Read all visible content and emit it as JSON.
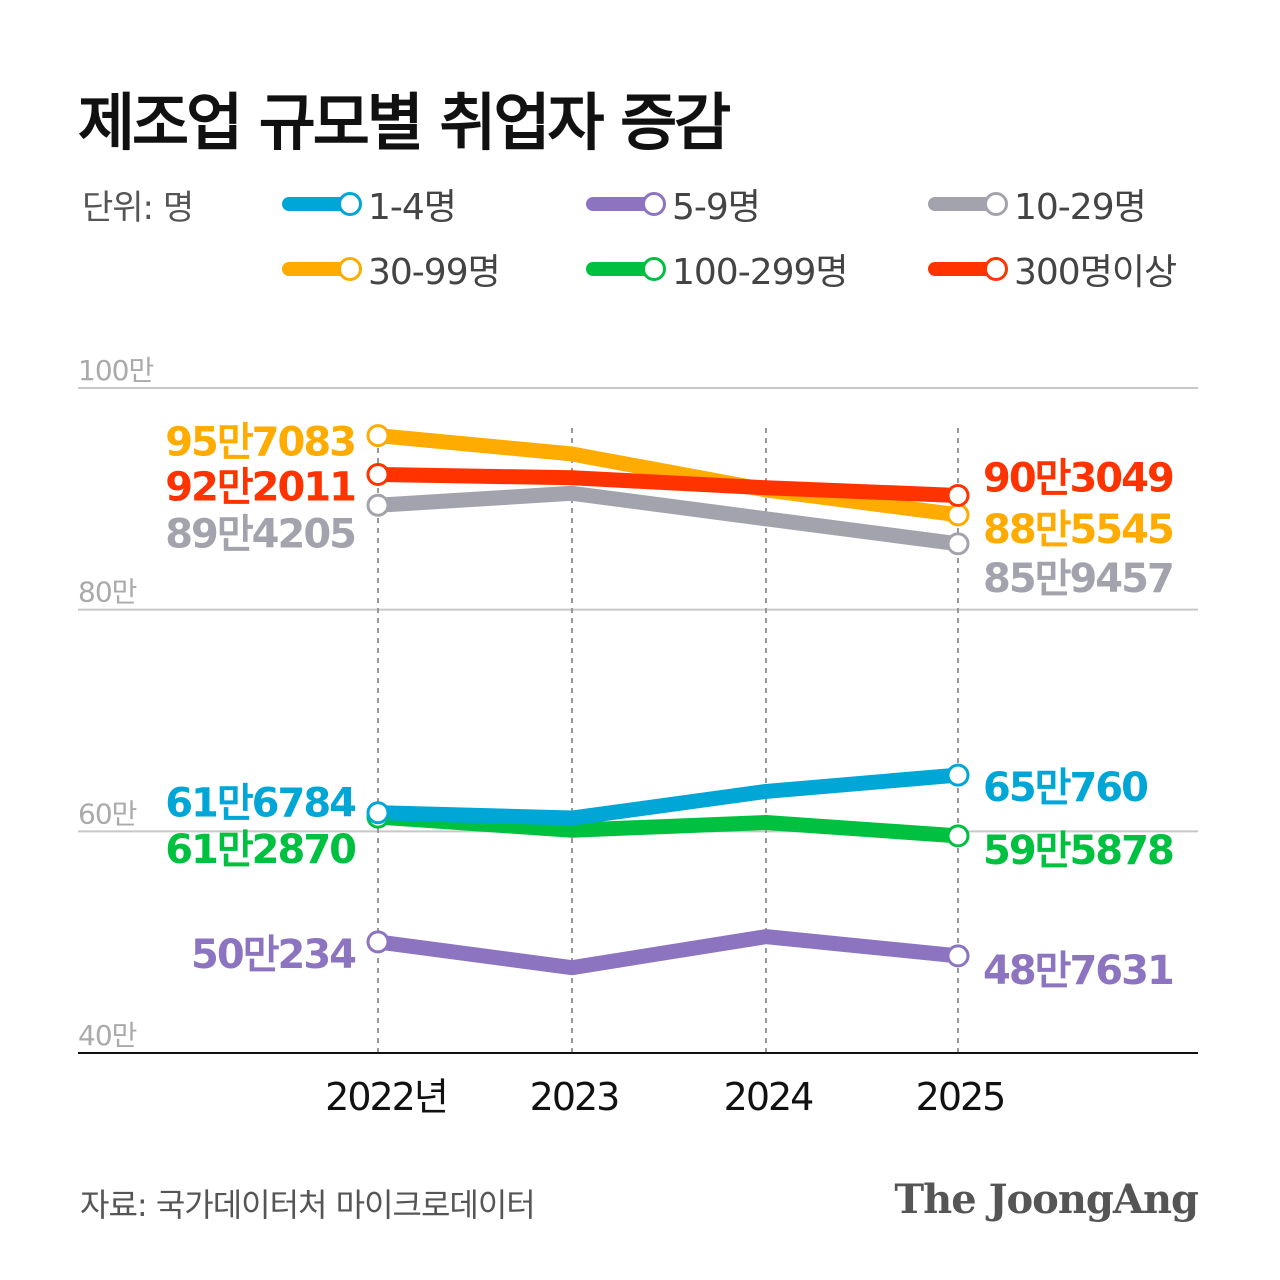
{
  "chart_data": {
    "type": "line",
    "title": "제조업 규모별 취업자 증감",
    "unit_label": "단위: 명",
    "categories": [
      "2022년",
      "2023",
      "2024",
      "2025"
    ],
    "ylim": [
      40,
      100
    ],
    "yticks": [
      {
        "value": 40,
        "label": "40만"
      },
      {
        "value": 60,
        "label": "60만"
      },
      {
        "value": 80,
        "label": "80만"
      },
      {
        "value": 100,
        "label": "100만"
      }
    ],
    "grid": true,
    "legend_placement": "top",
    "series": [
      {
        "name": "1-4명",
        "color": "#00a6d6",
        "values": [
          61.6784,
          61.2,
          63.6,
          65.076
        ],
        "start_label": "61만6784",
        "end_label": "65만760"
      },
      {
        "name": "5-9명",
        "color": "#8c74c0",
        "values": [
          50.0234,
          47.7,
          50.5,
          48.7631
        ],
        "start_label": "50만234",
        "end_label": "48만7631"
      },
      {
        "name": "10-29명",
        "color": "#a3a3ad",
        "values": [
          89.4205,
          90.5,
          88.2,
          85.9457
        ],
        "start_label": "89만4205",
        "end_label": "85만9457"
      },
      {
        "name": "30-99명",
        "color": "#ffab00",
        "values": [
          95.7083,
          94.05,
          90.8,
          88.5545
        ],
        "start_label": "95만7083",
        "end_label": "88만5545"
      },
      {
        "name": "100-299명",
        "color": "#00c040",
        "values": [
          61.287,
          60.1,
          60.8,
          59.5878
        ],
        "start_label": "61만2870",
        "end_label": "59만5878"
      },
      {
        "name": "300명이상",
        "color": "#ff3300",
        "values": [
          92.2011,
          91.9,
          91.0,
          90.3049
        ],
        "start_label": "92만2011",
        "end_label": "90만3049"
      }
    ]
  },
  "source": "자료: 국가데이터처 마이크로데이터",
  "logo": "The JoongAng"
}
